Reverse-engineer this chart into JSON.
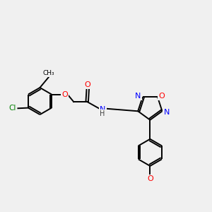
{
  "background_color": "#f0f0f0",
  "bond_color": "#000000",
  "atom_colors": {
    "O": "#ff0000",
    "N": "#0000ff",
    "Cl": "#008000",
    "C": "#000000",
    "H": "#404040"
  },
  "figsize": [
    3.0,
    3.0
  ],
  "dpi": 100
}
